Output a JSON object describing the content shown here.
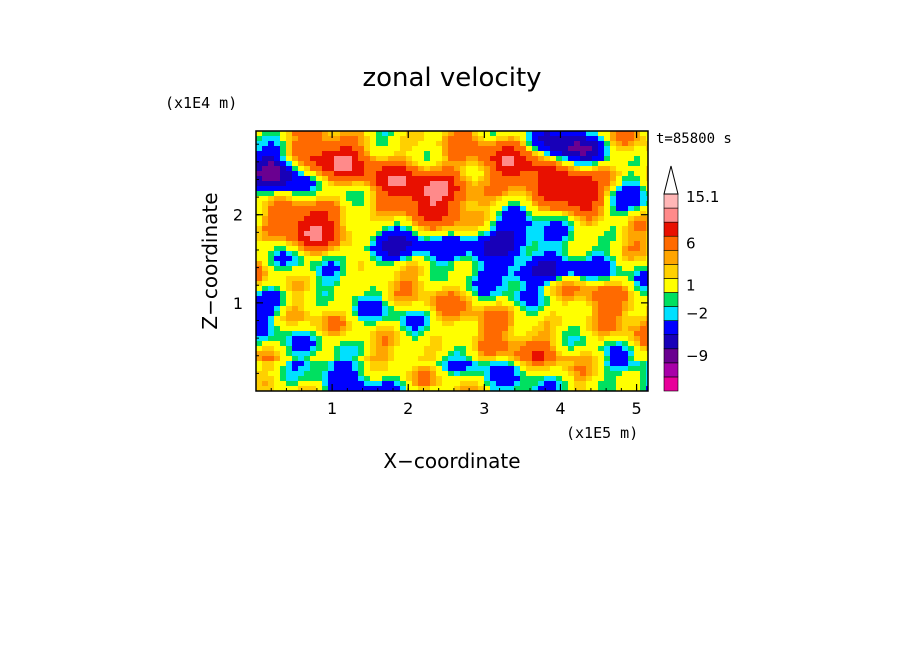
{
  "chart_data": {
    "type": "heatmap",
    "title": "zonal velocity",
    "xlabel": "X−coordinate",
    "ylabel": "Z−coordinate",
    "x_multiplier": "(x1E5 m)",
    "y_multiplier": "(x1E4 m)",
    "time_label": "t=85800 s",
    "xlim": [
      0,
      5.15
    ],
    "ylim": [
      0,
      2.95
    ],
    "x_ticks": [
      "1",
      "2",
      "3",
      "4",
      "5"
    ],
    "x_tick_values": [
      1,
      2,
      3,
      4,
      5
    ],
    "y_ticks": [
      "1",
      "2"
    ],
    "y_tick_values": [
      1,
      2
    ],
    "colorbar": {
      "label_texts": [
        "15.1",
        "6",
        "1",
        "−2",
        "−9"
      ],
      "label_values": [
        15.1,
        6,
        1,
        -2,
        -9
      ],
      "levels": [
        -15,
        -12,
        -9,
        -6,
        -3,
        -2,
        -1,
        1,
        2,
        3,
        6,
        9,
        12,
        15.1
      ],
      "colors": [
        "#e8009a",
        "#a800a8",
        "#6a0090",
        "#1800b8",
        "#0000ff",
        "#00e0ff",
        "#00e060",
        "#ffff00",
        "#ffd000",
        "#ffa500",
        "#ff6a00",
        "#e81000",
        "#ff8a8a",
        "#ffb6b6"
      ],
      "arrow_color": "#ffffff"
    },
    "features": [
      {
        "x": 2.3,
        "z": 2.3,
        "value": 8,
        "sx": 0.7,
        "sz": 0.35
      },
      {
        "x": 4.3,
        "z": 2.3,
        "value": 10,
        "sx": 0.4,
        "sz": 0.3
      },
      {
        "x": 0.9,
        "z": 2.6,
        "value": 7,
        "sx": 0.6,
        "sz": 0.25
      },
      {
        "x": 0.25,
        "z": 2.45,
        "value": -11,
        "sx": 0.35,
        "sz": 0.25
      },
      {
        "x": 0.7,
        "z": 1.85,
        "value": 7,
        "sx": 0.5,
        "sz": 0.25
      },
      {
        "x": 1.7,
        "z": 1.6,
        "value": -8,
        "sx": 0.5,
        "sz": 0.15
      },
      {
        "x": 3.2,
        "z": 1.7,
        "value": -10,
        "sx": 0.5,
        "sz": 0.2
      },
      {
        "x": 4.1,
        "z": 2.75,
        "value": -10,
        "sx": 0.5,
        "sz": 0.25
      },
      {
        "x": 4.6,
        "z": 2.1,
        "value": -6,
        "sx": 0.4,
        "sz": 0.2
      },
      {
        "x": 3.6,
        "z": 2.6,
        "value": 7,
        "sx": 0.5,
        "sz": 0.3
      },
      {
        "x": 3.8,
        "z": 1.35,
        "value": -9,
        "sx": 0.6,
        "sz": 0.15
      },
      {
        "x": 1.2,
        "z": 0.6,
        "value": -2,
        "sx": 0.4,
        "sz": 0.3
      },
      {
        "x": 3.4,
        "z": 0.5,
        "value": 1.5,
        "sx": 1.2,
        "sz": 0.4
      },
      {
        "x": 4.6,
        "z": 1.0,
        "value": 1.5,
        "sx": 0.6,
        "sz": 0.4
      },
      {
        "x": 0.2,
        "z": 1.0,
        "value": -5,
        "sx": 0.3,
        "sz": 0.2
      }
    ]
  }
}
